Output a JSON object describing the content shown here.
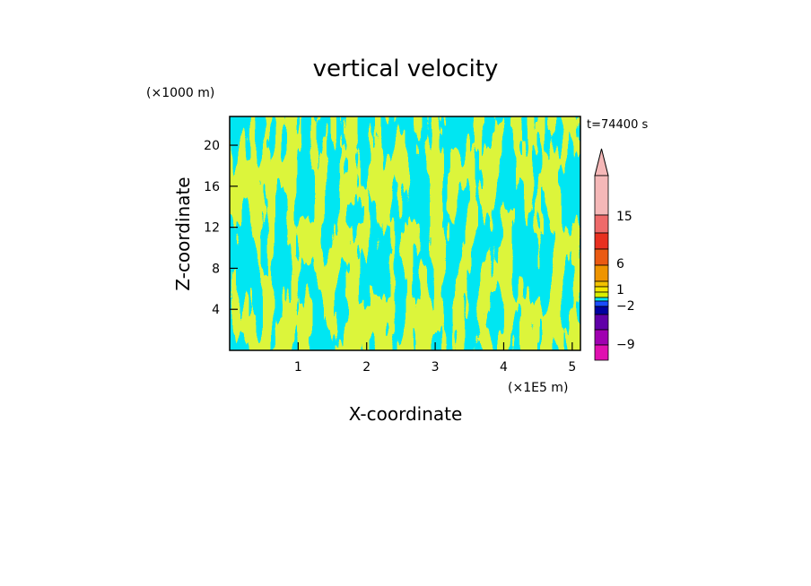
{
  "chart_data": {
    "type": "heatmap",
    "title": "vertical velocity",
    "xlabel": "X-coordinate",
    "ylabel": "Z-coordinate",
    "x_unit": "(×1E5 m)",
    "y_unit": "(×1000 m)",
    "time_label": "t=74400 s",
    "xlim": [
      0,
      5.12
    ],
    "ylim": [
      0,
      22.8
    ],
    "x_ticks": [
      "1",
      "2",
      "3",
      "4",
      "5"
    ],
    "y_ticks": [
      "4",
      "8",
      "12",
      "16",
      "20"
    ],
    "x_tick_values": [
      1,
      2,
      3,
      4,
      5
    ],
    "y_tick_values": [
      4,
      8,
      12,
      16,
      20
    ],
    "colorbar": {
      "labels": [
        "15",
        "6",
        "1",
        "−2",
        "−9"
      ],
      "label_values": [
        15,
        6,
        1,
        -2,
        -9
      ],
      "colors": [
        "#f5b8b8",
        "#ee6a6a",
        "#e83020",
        "#ea5a12",
        "#ee9400",
        "#f2c200",
        "#f4e800",
        "#d8f000",
        "#00e8f0",
        "#1a4cff",
        "#0000a0",
        "#6000a8",
        "#a000b0",
        "#e010b0"
      ],
      "extend_top": true
    },
    "dominant_colors": {
      "positive": "#dcf53a",
      "negative": "#00e6f2"
    },
    "field_description": "wavy vertical bands alternating yellow-green (weak updraft) and cyan (weak downdraft) across the whole domain"
  }
}
